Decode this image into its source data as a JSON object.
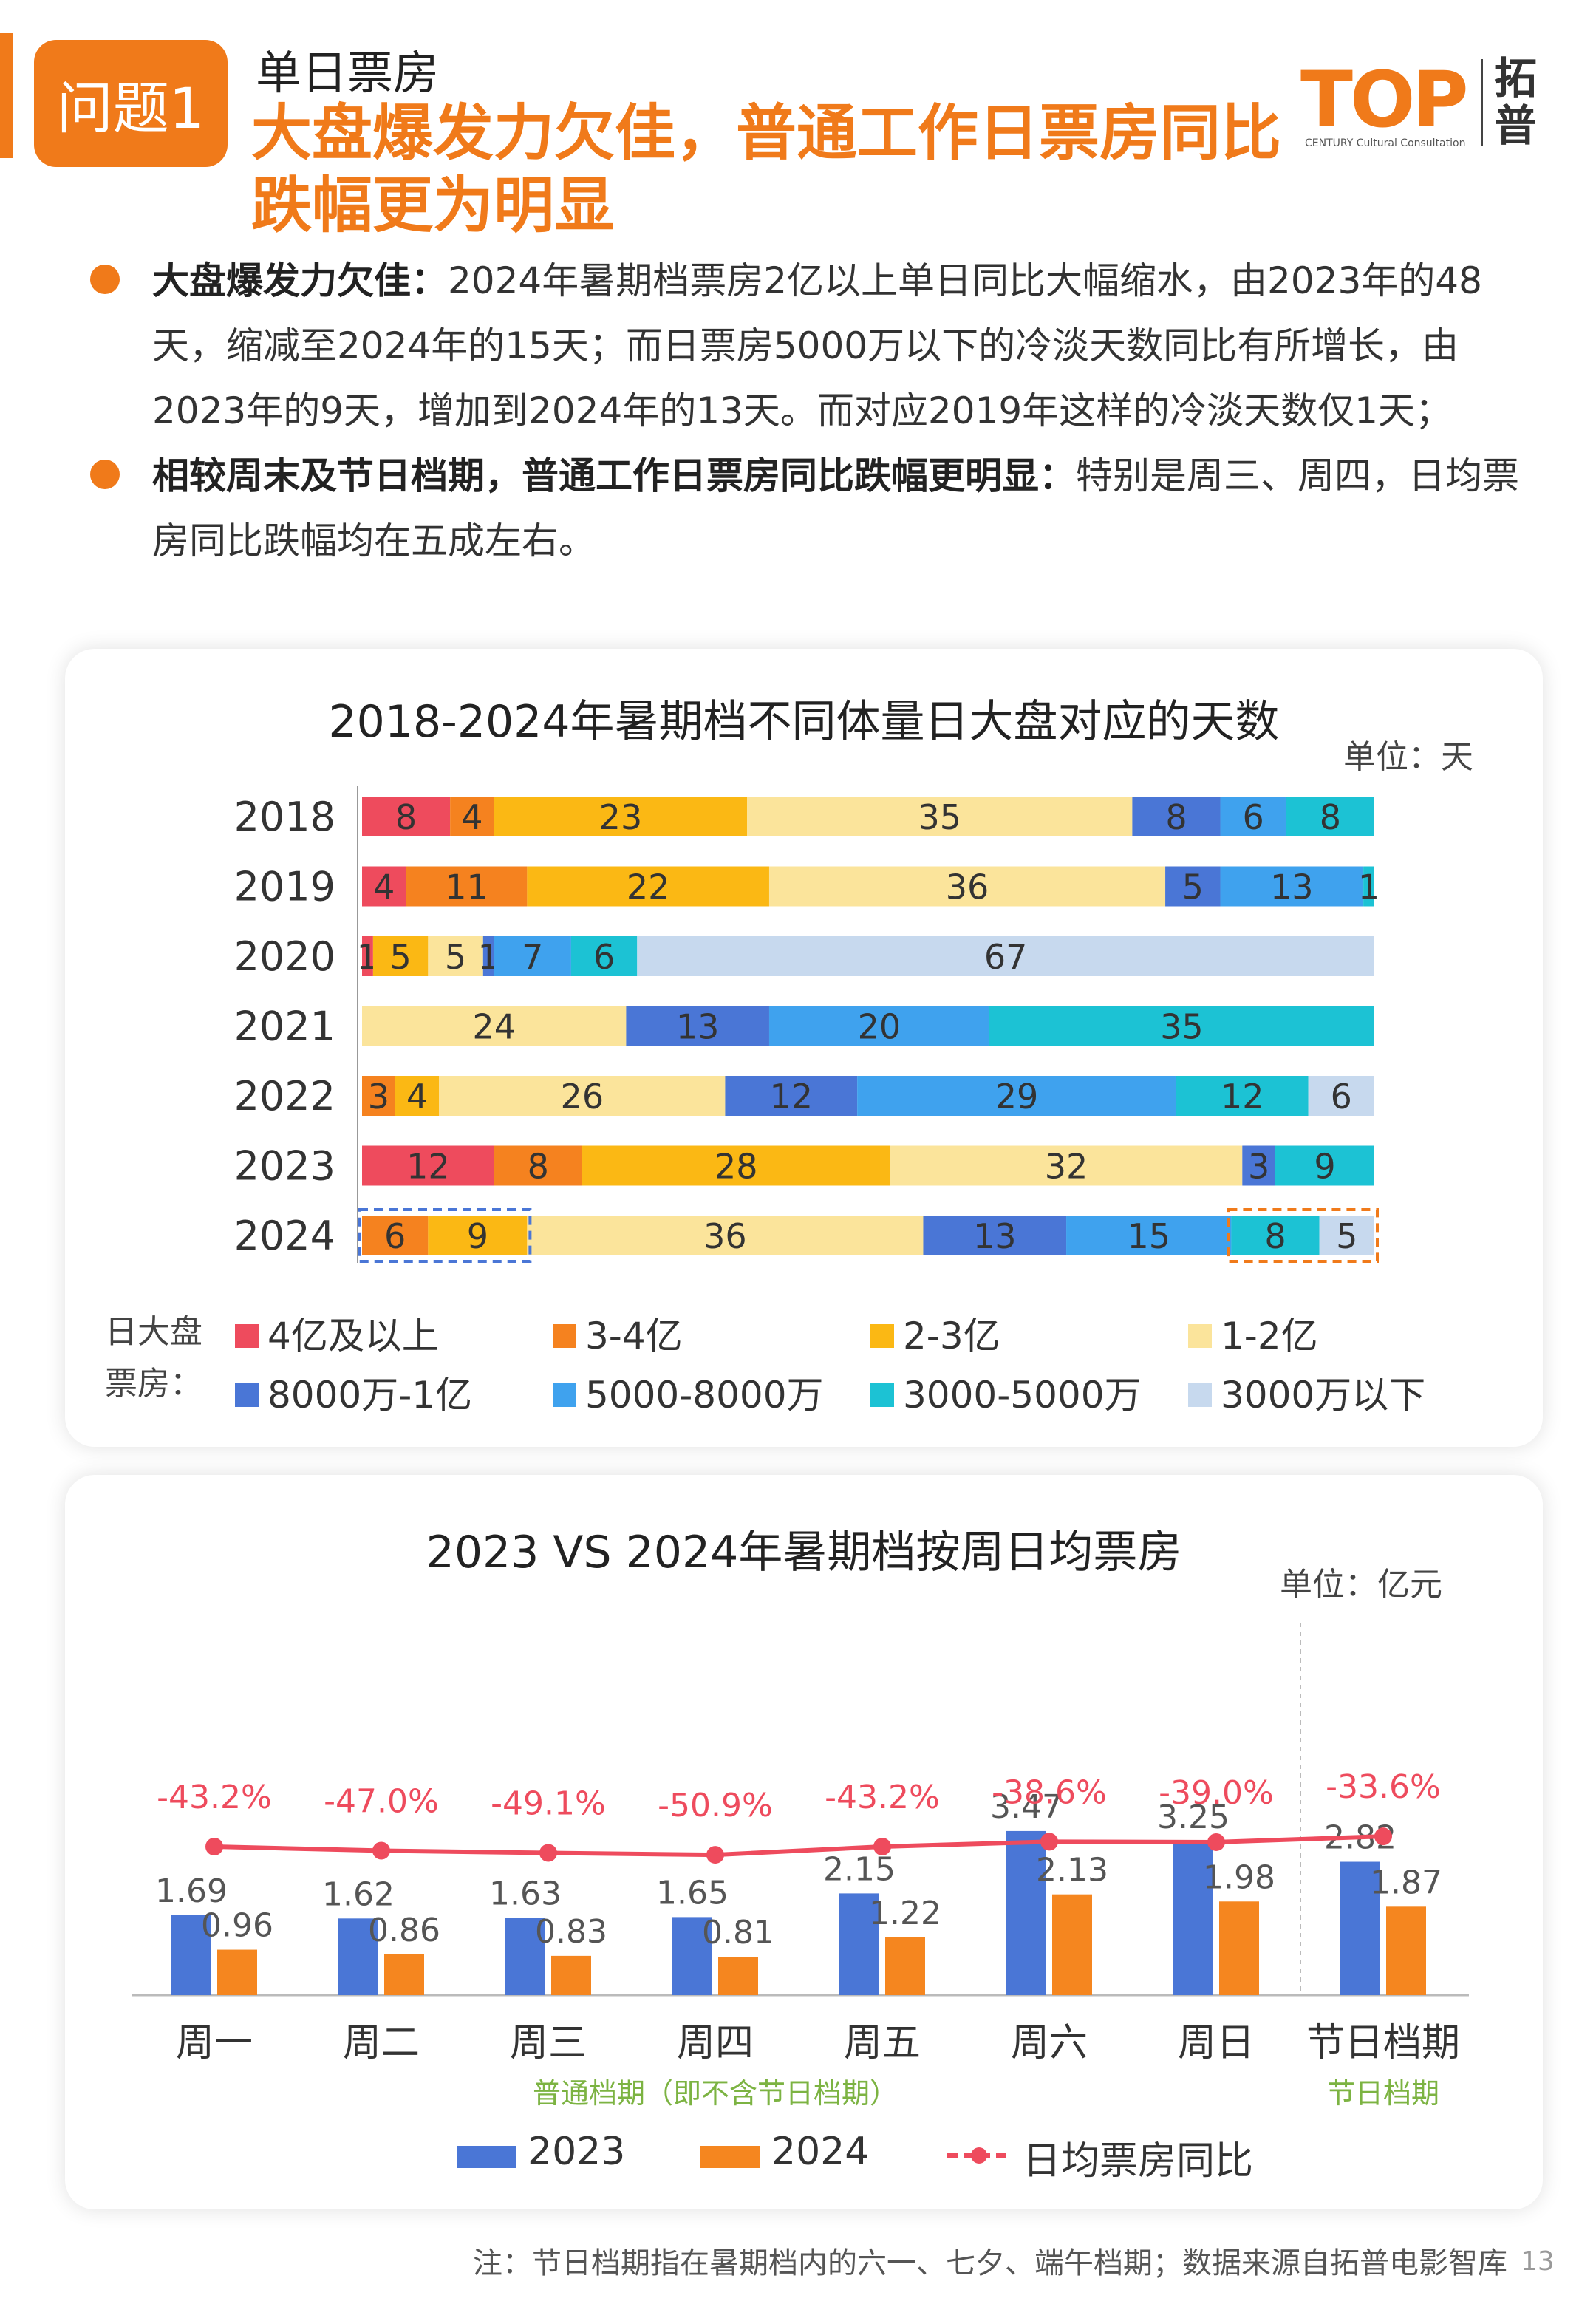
{
  "header": {
    "badge": "问题1",
    "section": "单日票房",
    "headline": "大盘爆发力欠佳，普通工作日票房同比跌幅更为明显",
    "logo_mark": "TOP",
    "logo_sub": "CENTURY Cultural Consultation",
    "logo_cn": "拓普"
  },
  "bullets": [
    {
      "lead": "大盘爆发力欠佳：",
      "text": "2024年暑期档票房2亿以上单日同比大幅缩水，由2023年的48天，缩减至2024年的15天；而日票房5000万以下的冷淡天数同比有所增长，由2023年的9天，增加到2024年的13天。而对应2019年这样的冷淡天数仅1天；"
    },
    {
      "lead": "相较周末及节日档期，普通工作日票房同比跌幅更明显：",
      "text": "特别是周三、周四，日均票房同比跌幅均在五成左右。"
    }
  ],
  "chart_data": [
    {
      "type": "bar",
      "orientation": "horizontal-stacked",
      "title": "2018-2024年暑期档不同体量日大盘对应的天数",
      "unit": "单位：天",
      "legend_title": "日大盘票房：",
      "categories": [
        "2018",
        "2019",
        "2020",
        "2021",
        "2022",
        "2023",
        "2024"
      ],
      "series": [
        {
          "name": "4亿及以上",
          "color": "#ee4b5d",
          "values": [
            8,
            4,
            1,
            0,
            0,
            12,
            0
          ]
        },
        {
          "name": "3-4亿",
          "color": "#f5821f",
          "values": [
            4,
            11,
            0,
            0,
            3,
            8,
            6
          ]
        },
        {
          "name": "2-3亿",
          "color": "#fbb814",
          "values": [
            23,
            22,
            5,
            0,
            4,
            28,
            9
          ]
        },
        {
          "name": "1-2亿",
          "color": "#fbe49b",
          "values": [
            35,
            36,
            5,
            24,
            26,
            32,
            36
          ]
        },
        {
          "name": "8000万-1亿",
          "color": "#4a76d6",
          "values": [
            8,
            5,
            1,
            13,
            12,
            3,
            13
          ]
        },
        {
          "name": "5000-8000万",
          "color": "#3fa2ee",
          "values": [
            6,
            13,
            7,
            20,
            29,
            0,
            15
          ]
        },
        {
          "name": "3000-5000万",
          "color": "#1cc2d4",
          "values": [
            8,
            1,
            6,
            35,
            12,
            9,
            8
          ]
        },
        {
          "name": "3000万以下",
          "color": "#c7d9ee",
          "values": [
            0,
            0,
            67,
            0,
            6,
            0,
            5
          ]
        }
      ],
      "xlim": [
        0,
        92
      ],
      "highlights": [
        "2024: 4亿及以上 ~ 2-3亿",
        "2024: 3000-5000万 ~ 3000万以下"
      ]
    },
    {
      "type": "bar",
      "title": "2023 VS 2024年暑期档按周日均票房",
      "unit": "单位：亿元",
      "categories": [
        "周一",
        "周二",
        "周三",
        "周四",
        "周五",
        "周六",
        "周日",
        "节日档期"
      ],
      "series": [
        {
          "name": "2023",
          "color": "#4a76d6",
          "values": [
            1.69,
            1.62,
            1.63,
            1.65,
            2.15,
            3.47,
            3.25,
            2.82
          ]
        },
        {
          "name": "2024",
          "color": "#f5861f",
          "values": [
            0.96,
            0.86,
            0.83,
            0.81,
            1.22,
            2.13,
            1.98,
            1.87
          ]
        }
      ],
      "line_series": {
        "name": "日均票房同比",
        "color": "#ee4b5d",
        "values": [
          -43.2,
          -47.0,
          -49.1,
          -50.9,
          -43.2,
          -38.6,
          -39.0,
          -33.6
        ],
        "labels": [
          "-43.2%",
          "-47.0%",
          "-49.1%",
          "-50.9%",
          "-43.2%",
          "-38.6%",
          "-39.0%",
          "-33.6%"
        ]
      },
      "groups": [
        {
          "label": "普通档期（即不含节日档期）",
          "span": [
            0,
            6
          ]
        },
        {
          "label": "节日档期",
          "span": [
            7,
            7
          ]
        }
      ],
      "ylim": [
        0,
        4
      ]
    }
  ],
  "footnote": "注：节日档期指在暑期档内的六一、七夕、端午档期；数据来源自拓普电影智库",
  "page_number": "13"
}
